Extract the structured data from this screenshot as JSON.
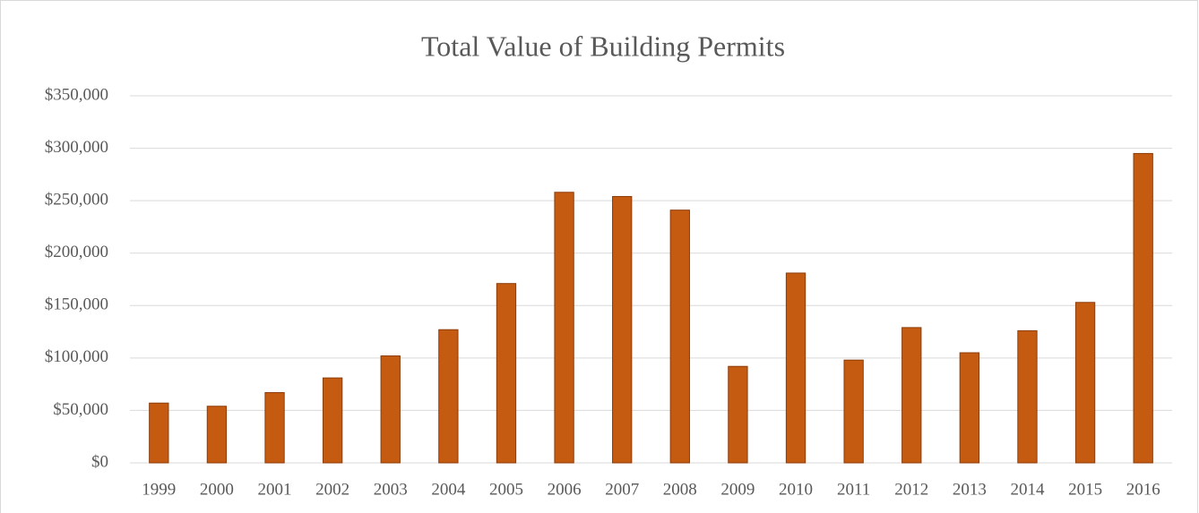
{
  "chart_data": {
    "type": "bar",
    "title": "Total Value of Building Permits",
    "categories": [
      "1999",
      "2000",
      "2001",
      "2002",
      "2003",
      "2004",
      "2005",
      "2006",
      "2007",
      "2008",
      "2009",
      "2010",
      "2011",
      "2012",
      "2013",
      "2014",
      "2015",
      "2016"
    ],
    "values": [
      57000,
      54000,
      67000,
      81000,
      102000,
      127000,
      171000,
      258000,
      254000,
      241000,
      92000,
      181000,
      98000,
      129000,
      105000,
      126000,
      153000,
      295000
    ],
    "color": "#c55a11",
    "edge_color": "#8c3d0b",
    "ylim": [
      0,
      350000
    ],
    "yticks": [
      {
        "value": 0,
        "label": "$0"
      },
      {
        "value": 50000,
        "label": "$50,000"
      },
      {
        "value": 100000,
        "label": "$100,000"
      },
      {
        "value": 150000,
        "label": "$150,000"
      },
      {
        "value": 200000,
        "label": "$200,000"
      },
      {
        "value": 250000,
        "label": "$250,000"
      },
      {
        "value": 300000,
        "label": "$300,000"
      },
      {
        "value": 350000,
        "label": "$350,000"
      }
    ],
    "grid": true
  }
}
